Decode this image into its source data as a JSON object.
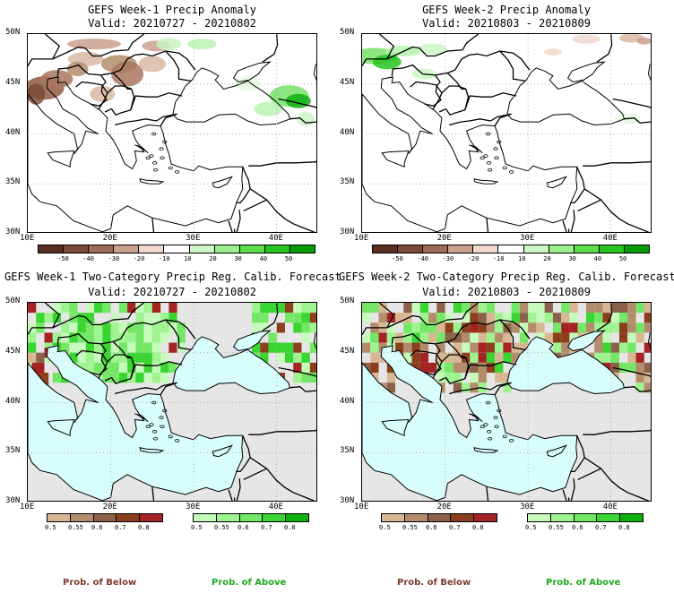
{
  "colors": {
    "brown_dark": "#7b3d2a",
    "brown_mid": "#a9765e",
    "brown_light": "#d9b8a6",
    "green_light": "#b9f3b0",
    "green_mid": "#66dd55",
    "green_dark": "#0fae0f",
    "land": "#ffffff",
    "sea_top": "#ffffff",
    "sea_bottom": "#d8fdfd",
    "land_bottom": "#e6e6e6"
  },
  "panels": [
    {
      "title": "GEFS Week-1 Precip Anomaly",
      "valid": "Valid: 20210727 - 20210802",
      "lat_labels": [
        "50N",
        "45N",
        "40N",
        "35N",
        "30N"
      ],
      "lon_labels": [
        "10E",
        "20E",
        "30E",
        "40E"
      ]
    },
    {
      "title": "GEFS Week-2 Precip Anomaly",
      "valid": "Valid: 20210803 - 20210809",
      "lat_labels": [
        "50N",
        "45N",
        "40N",
        "35N",
        "30N"
      ],
      "lon_labels": [
        "10E",
        "20E",
        "30E",
        "40E"
      ]
    },
    {
      "title": "GEFS Week-1 Two-Category Precip Reg. Calib. Forecast",
      "valid": "Valid: 20210727 - 20210802",
      "lat_labels": [
        "50N",
        "45N",
        "40N",
        "35N",
        "30N"
      ],
      "lon_labels": [
        "10E",
        "20E",
        "30E",
        "40E"
      ]
    },
    {
      "title": "GEFS Week-2 Two-Category Precip Reg. Calib. Forecast",
      "valid": "Valid: 20210803 - 20210809",
      "lat_labels": [
        "50N",
        "45N",
        "40N",
        "35N",
        "30N"
      ],
      "lon_labels": [
        "10E",
        "20E",
        "30E",
        "40E"
      ]
    }
  ],
  "anomaly_colorbar": {
    "ticks": [
      "-50",
      "-40",
      "-30",
      "-20",
      "-10",
      "10",
      "20",
      "30",
      "40",
      "50"
    ],
    "colors": [
      "#5a2f1f",
      "#7b4a35",
      "#9c6a55",
      "#c9a08c",
      "#efd9cc",
      "#ffffff",
      "#cdf7c5",
      "#9bef8c",
      "#5ddc4c",
      "#26c41e",
      "#079b07"
    ]
  },
  "prob_below_colorbar": {
    "ticks": [
      "0.5",
      "0.55",
      "0.6",
      "0.7",
      "0.8"
    ],
    "colors": [
      "#d8b894",
      "#b38d6b",
      "#8b6249",
      "#8b3f1c",
      "#a52323"
    ]
  },
  "prob_above_colorbar": {
    "ticks": [
      "0.5",
      "0.55",
      "0.6",
      "0.7",
      "0.8"
    ],
    "colors": [
      "#c6fbbb",
      "#9ff490",
      "#74e866",
      "#39d530",
      "#0db00d"
    ]
  },
  "legend": {
    "below_left": "Prob. of Below",
    "above_left": "Prob. of Above",
    "below_right": "Prob. of Below",
    "above_right": "Prob. of Above"
  }
}
